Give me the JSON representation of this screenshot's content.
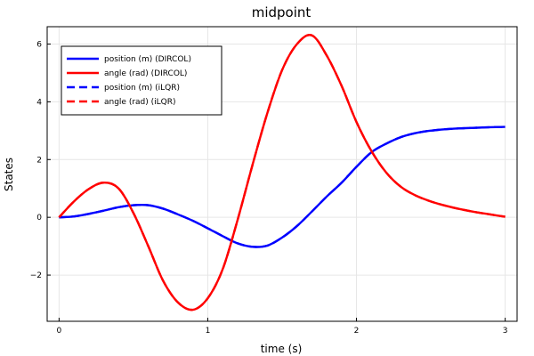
{
  "chart_data": {
    "type": "line",
    "title": "midpoint",
    "xlabel": "time (s)",
    "ylabel": "States",
    "xlim": [
      -0.08,
      3.08
    ],
    "ylim": [
      -3.6,
      6.6
    ],
    "xticks": [
      0,
      1,
      2,
      3
    ],
    "xtick_labels": [
      "0",
      "1",
      "2",
      "3"
    ],
    "yticks": [
      -2,
      0,
      2,
      4,
      6
    ],
    "ytick_labels": [
      "−2",
      "0",
      "2",
      "4",
      "6"
    ],
    "grid": true,
    "legend_position": "top-left",
    "series": [
      {
        "name": "position (m) (DIRCOL)",
        "color": "#0000ff",
        "dash": "solid",
        "x": [
          0,
          0.1,
          0.2,
          0.3,
          0.4,
          0.5,
          0.6,
          0.7,
          0.8,
          0.9,
          1.0,
          1.1,
          1.2,
          1.3,
          1.4,
          1.5,
          1.6,
          1.7,
          1.8,
          1.9,
          2.0,
          2.1,
          2.2,
          2.3,
          2.4,
          2.5,
          2.6,
          2.7,
          2.8,
          2.9,
          3.0
        ],
        "y": [
          0,
          0.03,
          0.12,
          0.23,
          0.35,
          0.42,
          0.42,
          0.3,
          0.1,
          -0.12,
          -0.38,
          -0.65,
          -0.9,
          -1.02,
          -0.98,
          -0.7,
          -0.3,
          0.2,
          0.72,
          1.2,
          1.75,
          2.25,
          2.55,
          2.78,
          2.92,
          3.0,
          3.05,
          3.08,
          3.1,
          3.12,
          3.13
        ]
      },
      {
        "name": "angle (rad) (DIRCOL)",
        "color": "#ff0000",
        "dash": "solid",
        "x": [
          0,
          0.1,
          0.2,
          0.3,
          0.4,
          0.5,
          0.6,
          0.7,
          0.8,
          0.9,
          1.0,
          1.1,
          1.2,
          1.3,
          1.4,
          1.5,
          1.6,
          1.7,
          1.8,
          1.9,
          2.0,
          2.1,
          2.2,
          2.3,
          2.4,
          2.5,
          2.6,
          2.7,
          2.8,
          2.9,
          3.0
        ],
        "y": [
          0,
          0.55,
          0.98,
          1.2,
          1.0,
          0.15,
          -1.0,
          -2.2,
          -2.95,
          -3.2,
          -2.8,
          -1.8,
          -0.1,
          1.8,
          3.6,
          5.1,
          6.0,
          6.3,
          5.6,
          4.55,
          3.3,
          2.3,
          1.55,
          1.05,
          0.75,
          0.55,
          0.4,
          0.28,
          0.18,
          0.1,
          0.02
        ]
      },
      {
        "name": "position (m) (iLQR)",
        "color": "#0000ff",
        "dash": "dashed",
        "x": [
          0,
          0.1,
          0.2,
          0.3,
          0.4,
          0.5,
          0.6,
          0.7,
          0.8,
          0.9,
          1.0,
          1.1,
          1.2,
          1.3,
          1.4,
          1.5,
          1.6,
          1.7,
          1.8,
          1.9,
          2.0,
          2.1,
          2.2,
          2.3,
          2.4,
          2.5,
          2.6,
          2.7,
          2.8,
          2.9,
          3.0
        ],
        "y": [
          0,
          0.03,
          0.12,
          0.23,
          0.35,
          0.42,
          0.42,
          0.3,
          0.1,
          -0.12,
          -0.38,
          -0.65,
          -0.9,
          -1.02,
          -0.98,
          -0.7,
          -0.3,
          0.2,
          0.72,
          1.2,
          1.75,
          2.25,
          2.55,
          2.78,
          2.92,
          3.0,
          3.05,
          3.08,
          3.1,
          3.12,
          3.13
        ]
      },
      {
        "name": "angle (rad) (iLQR)",
        "color": "#ff0000",
        "dash": "dashed",
        "x": [
          0,
          0.1,
          0.2,
          0.3,
          0.4,
          0.5,
          0.6,
          0.7,
          0.8,
          0.9,
          1.0,
          1.1,
          1.2,
          1.3,
          1.4,
          1.5,
          1.6,
          1.7,
          1.8,
          1.9,
          2.0,
          2.1,
          2.2,
          2.3,
          2.4,
          2.5,
          2.6,
          2.7,
          2.8,
          2.9,
          3.0
        ],
        "y": [
          0,
          0.55,
          0.98,
          1.2,
          1.0,
          0.15,
          -1.0,
          -2.2,
          -2.95,
          -3.2,
          -2.8,
          -1.8,
          -0.1,
          1.8,
          3.6,
          5.1,
          6.0,
          6.3,
          5.6,
          4.55,
          3.3,
          2.3,
          1.55,
          1.05,
          0.75,
          0.55,
          0.4,
          0.28,
          0.18,
          0.1,
          0.02
        ]
      }
    ]
  }
}
